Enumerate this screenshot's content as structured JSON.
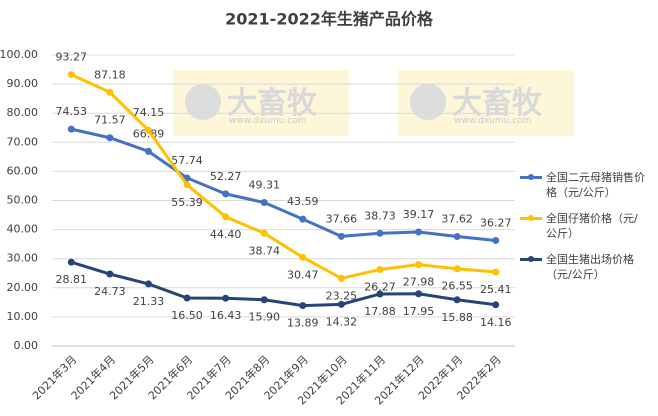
{
  "chart_data": {
    "type": "line",
    "title": "2021-2022年生猪产品价格",
    "watermark": [
      "大畜牧",
      "www.dxumu.com"
    ],
    "categories": [
      "2021年3月",
      "2021年4月",
      "2021年5月",
      "2021年6月",
      "2021年7月",
      "2021年8月",
      "2021年9月",
      "2021年10月",
      "2021年11月",
      "2021年12月",
      "2022年1月",
      "2022年2月"
    ],
    "series": [
      {
        "name": "全国二元母猪销售价格（元/公斤）",
        "color": "#4472c4",
        "values": [
          74.53,
          71.57,
          66.89,
          57.74,
          52.27,
          49.31,
          43.59,
          37.66,
          38.73,
          39.17,
          37.62,
          36.27
        ],
        "value_labels": [
          "74.53",
          "71.57",
          "66.89",
          "57.74",
          "52.27",
          "49.31",
          "43.59",
          "37.66",
          "38.73",
          "39.17",
          "37.62",
          "36.27"
        ]
      },
      {
        "name": "全国仔猪价格（元/公斤）",
        "color": "#ffc000",
        "values": [
          93.27,
          87.18,
          74.15,
          55.39,
          44.4,
          38.74,
          30.47,
          23.25,
          26.27,
          27.98,
          26.55,
          25.41
        ],
        "value_labels": [
          "93.27",
          "87.18",
          "74.15",
          "55.39",
          "44.40",
          "38.74",
          "30.47",
          "23.25",
          "26.27",
          "27.98",
          "26.55",
          "25.41"
        ]
      },
      {
        "name": "全国生猪出场价格（元/公斤）",
        "color": "#264478",
        "values": [
          28.81,
          24.73,
          21.33,
          16.5,
          16.43,
          15.9,
          13.89,
          14.32,
          17.88,
          17.95,
          15.88,
          14.16
        ],
        "value_labels": [
          "28.81",
          "24.73",
          "21.33",
          "16.50",
          "16.43",
          "15.90",
          "13.89",
          "14.32",
          "17.88",
          "17.95",
          "15.88",
          "14.16"
        ]
      }
    ],
    "ylim": [
      0,
      100
    ],
    "yticks": [
      {
        "value": 0,
        "label": "0.00"
      },
      {
        "value": 10,
        "label": "10.00"
      },
      {
        "value": 20,
        "label": "20.00"
      },
      {
        "value": 30,
        "label": "30.00"
      },
      {
        "value": 40,
        "label": "40.00"
      },
      {
        "value": 50,
        "label": "50.00"
      },
      {
        "value": 60,
        "label": "60.00"
      },
      {
        "value": 70,
        "label": "70.00"
      },
      {
        "value": 80,
        "label": "80.00"
      },
      {
        "value": 90,
        "label": "90.00"
      },
      {
        "value": 100,
        "label": "100.00"
      }
    ],
    "grid": true
  }
}
